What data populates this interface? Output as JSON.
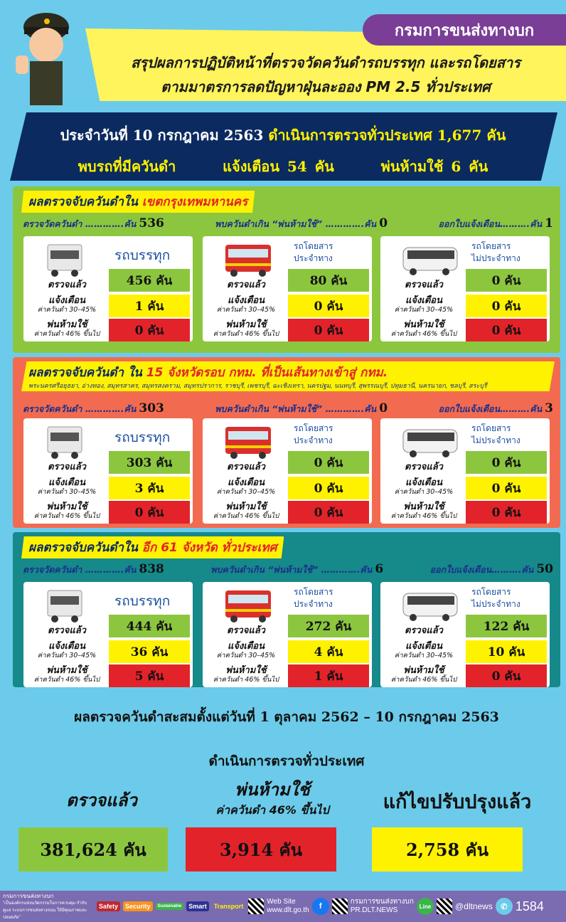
{
  "header": {
    "org": "กรมการขนส่งทางบก",
    "title1": "สรุปผลการปฏิบัติหน้าที่ตรวจวัดควันดำรถบรรทุก และรถโดยสาร",
    "title2": "ตามมาตรการลดปัญหาฝุ่นละออง PM 2.5 ทั่วประเทศ",
    "line1_a": "ประจำวันที่ 10 กรกฎาคม 2563",
    "line1_b": "ดำเนินการตรวจทั่วประเทศ 1,677 คัน",
    "line2_a": "พบรถที่มีควันดำ",
    "line2_b": "แจ้งเตือน  54  คัน",
    "line2_c": "พ่นห้ามใช้  6  คัน"
  },
  "labels": {
    "measured": "ตรวจวัดควันดำ ………….คัน",
    "over": "พบควันดำเกิน “พ่นห้ามใช้” ………….คัน",
    "notice": "ออกใบแจ้งเตือน……….คัน",
    "checked": "ตรวจแล้ว",
    "warn": "แจ้งเตือน",
    "warn_sub": "ค่าควันดำ 30–45%",
    "ban": "พ่นห้ามใช้",
    "ban_sub": "ค่าควันดำ 46% ขึ้นไป",
    "truck": "รถบรรทุก",
    "bus1": "รถโดยสาร",
    "bus1b": "ประจำทาง",
    "bus2": "รถโดยสาร",
    "bus2b": "ไม่ประจำทาง"
  },
  "sections": [
    {
      "title_a": "ผลตรวจจับควันดำใน",
      "title_b": "เขตกรุงเทพมหานคร",
      "subtitle": "",
      "color": "#8cc63f",
      "measured": "536",
      "over": "0",
      "notice": "1",
      "cards": [
        [
          "456 คัน",
          "1 คัน",
          "0 คัน"
        ],
        [
          "80 คัน",
          "0 คัน",
          "0 คัน"
        ],
        [
          "0 คัน",
          "0 คัน",
          "0 คัน"
        ]
      ]
    },
    {
      "title_a": "ผลตรวจจับควันดำ ใน",
      "title_b": "15 จังหวัดรอบ กทม. ที่เป็นเส้นทางเข้าสู่ กทม.",
      "subtitle": "พระนครศรีอยุธยา, อ่างทอง, สมุทรสาคร, สมุทรสงคราม, สมุทรปราการ, ราชบุรี, เพชรบุรี, ฉะเชิงเทรา, นครปฐม, นนทบุรี, สุพรรณบุรี, ปทุมธานี, นครนายก, ชลบุรี, สระบุรี",
      "color": "#f26b50",
      "measured": "303",
      "over": "0",
      "notice": "3",
      "cards": [
        [
          "303 คัน",
          "3 คัน",
          "0 คัน"
        ],
        [
          "0 คัน",
          "0 คัน",
          "0 คัน"
        ],
        [
          "0 คัน",
          "0 คัน",
          "0 คัน"
        ]
      ]
    },
    {
      "title_a": "ผลตรวจจับควันดำใน",
      "title_b": "อีก 61 จังหวัด ทั่วประเทศ",
      "subtitle": "",
      "color": "#16898a",
      "measured": "838",
      "over": "6",
      "notice": "50",
      "cards": [
        [
          "444 คัน",
          "36 คัน",
          "5 คัน"
        ],
        [
          "272 คัน",
          "4 คัน",
          "1 คัน"
        ],
        [
          "122 คัน",
          "10 คัน",
          "0 คัน"
        ]
      ]
    }
  ],
  "total": {
    "line1": "ผลตรวจควันดำสะสมตั้งแต่วันที่  1 ตุลาคม 2562 – 10 กรกฎาคม 2563",
    "line2": "ดำเนินการตรวจทั่วประเทศ",
    "checked_label": "ตรวจแล้ว",
    "checked": "381,624 คัน",
    "ban_label": "พ่นห้ามใช้",
    "ban_sub": "ค่าควันดำ 46% ขึ้นไป",
    "ban": "3,914 คัน",
    "fixed_label": "แก้ไขปรับปรุงแล้ว",
    "fixed": "2,758 คัน"
  },
  "footer": {
    "org": "กรมการขนส่งทางบก",
    "motto": "\"เป็นองค์กรแห่งนวัตกรรมในการควบคุม กำกับ ดูแล ระบบการขนส่งทางถนน ให้มีคุณภาพและปลอดภัย\"",
    "tags": [
      "Safety",
      "Security",
      "Sustainable",
      "Smart",
      "Transport"
    ],
    "web_label": "Web Site",
    "web": "www.dlt.go.th",
    "fb_name": "กรมการขนส่งทางบก",
    "fb_page": "PR.DLT.NEWS",
    "line": "@dltnews",
    "line_icon": "Line",
    "fb_icon": "f",
    "phone": "1584"
  }
}
